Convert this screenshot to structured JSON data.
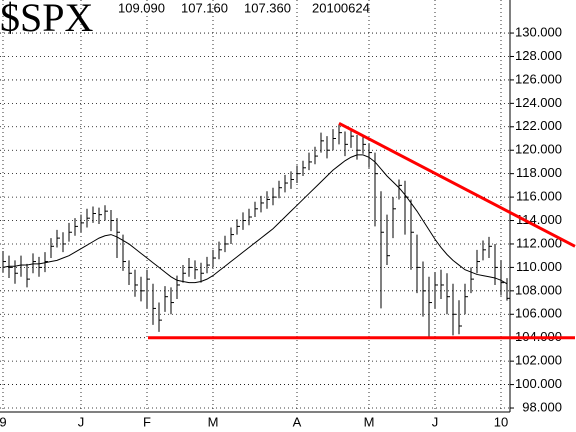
{
  "chart_data": {
    "type": "ohlc",
    "title": "$SPX",
    "header_values": [
      {
        "value": 109.09,
        "label": "109.090"
      },
      {
        "value": 107.16,
        "label": "107.160"
      },
      {
        "value": 107.36,
        "label": "107.360"
      }
    ],
    "date": "20100624",
    "categories": [
      "9",
      null,
      null,
      null,
      null,
      null,
      null,
      null,
      null,
      null,
      null,
      null,
      null,
      "J",
      null,
      null,
      null,
      null,
      null,
      null,
      null,
      null,
      null,
      null,
      "F",
      null,
      null,
      null,
      null,
      null,
      null,
      null,
      null,
      null,
      null,
      "M",
      null,
      null,
      null,
      null,
      null,
      null,
      null,
      null,
      null,
      null,
      null,
      null,
      null,
      "A",
      null,
      null,
      null,
      null,
      null,
      null,
      null,
      null,
      null,
      null,
      null,
      "M",
      null,
      null,
      null,
      null,
      null,
      null,
      null,
      null,
      null,
      null,
      "J",
      null,
      null,
      null,
      null,
      null,
      null,
      null,
      null,
      null,
      null,
      "10",
      null
    ],
    "high": [
      111.4,
      111,
      110.6,
      111,
      110.3,
      111.2,
      110.9,
      111.3,
      112.5,
      113.2,
      113,
      113.8,
      114.2,
      114.5,
      115,
      115.2,
      115.1,
      115.3,
      114.9,
      114.2,
      112.8,
      110.6,
      109.8,
      109.2,
      109.8,
      108.6,
      107,
      108.4,
      108.3,
      109.3,
      110.2,
      110.8,
      110.6,
      110.4,
      110.9,
      111.5,
      112.2,
      112.7,
      113.4,
      114.1,
      114.7,
      115,
      115.6,
      116.1,
      116.5,
      116.8,
      117.4,
      117.9,
      118.2,
      118.7,
      119.1,
      119.8,
      120.3,
      121.5,
      121.2,
      121.8,
      122.2,
      121.6,
      121.9,
      121.3,
      121.3,
      120.6,
      119.8,
      116.5,
      114.5,
      116,
      117.5,
      117.4,
      115.8,
      112.8,
      110.5,
      109.2,
      109.6,
      109.8,
      109.5,
      108.6,
      107.2,
      108.6,
      110,
      111.5,
      112.3,
      112.6,
      112,
      110.6,
      109.09
    ],
    "low": [
      109.6,
      109.1,
      108.6,
      109.2,
      108.3,
      109.5,
      109.2,
      109.6,
      110.8,
      111.7,
      111.3,
      112.2,
      112.7,
      113,
      113.4,
      113.8,
      113.7,
      114,
      113.1,
      110.8,
      109.7,
      108.5,
      107.5,
      107.1,
      106.5,
      105.1,
      104.5,
      106.2,
      106,
      107.3,
      108.7,
      109.2,
      109,
      108.7,
      109.5,
      110,
      110.7,
      111.3,
      112,
      112.8,
      113.2,
      113.6,
      114.3,
      114.7,
      115,
      115.3,
      115.9,
      116.4,
      116.7,
      117.2,
      117.8,
      118.3,
      118.8,
      119.8,
      119.3,
      120,
      120.5,
      119.5,
      120.2,
      119.2,
      119.7,
      118.5,
      113.5,
      106.5,
      110.2,
      112.5,
      115.8,
      112.8,
      109.8,
      107.8,
      105.8,
      104,
      106.5,
      107.3,
      106,
      104.2,
      104.3,
      106,
      107.8,
      109.5,
      110.6,
      110.8,
      108.5,
      107.6,
      107.16
    ],
    "close": [
      110.5,
      110,
      109.5,
      110.2,
      109,
      110.5,
      110,
      110.5,
      111.8,
      112.5,
      112,
      113,
      113.5,
      113.8,
      114.2,
      114.6,
      114.5,
      114.8,
      114,
      113,
      110.5,
      109.5,
      108.5,
      108,
      109,
      106.5,
      105.5,
      107.5,
      107,
      108.5,
      109.5,
      110,
      109.8,
      109.5,
      110.2,
      110.8,
      111.5,
      112,
      112.8,
      113.5,
      114,
      114.3,
      115,
      115.5,
      115.8,
      116,
      116.8,
      117.2,
      117.5,
      118,
      118.5,
      119,
      119.5,
      120.8,
      120,
      121,
      121.5,
      120.5,
      121.2,
      120,
      120.5,
      119.8,
      118,
      113,
      111,
      115,
      117,
      116,
      113,
      110,
      108,
      107,
      108.5,
      108.5,
      107.5,
      106,
      105,
      107.5,
      109,
      110.5,
      111.5,
      111.8,
      110,
      108.7,
      107.36
    ],
    "moving_average": [
      110,
      110.1,
      110.1,
      110.2,
      110.2,
      110.3,
      110.3,
      110.4,
      110.5,
      110.6,
      110.8,
      111,
      111.3,
      111.6,
      111.9,
      112.2,
      112.5,
      112.7,
      112.8,
      112.6,
      112.3,
      112,
      111.6,
      111.2,
      110.8,
      110.4,
      110,
      109.6,
      109.2,
      108.9,
      108.8,
      108.7,
      108.7,
      108.8,
      109,
      109.3,
      109.7,
      110.1,
      110.5,
      110.9,
      111.3,
      111.7,
      112.1,
      112.5,
      112.9,
      113.3,
      113.8,
      114.3,
      114.8,
      115.3,
      115.8,
      116.3,
      116.8,
      117.3,
      117.8,
      118.3,
      118.7,
      119.1,
      119.4,
      119.6,
      119.6,
      119.4,
      119,
      118.4,
      117.8,
      117.3,
      116.8,
      116.2,
      115.5,
      114.8,
      114,
      113.2,
      112.4,
      111.7,
      111.1,
      110.6,
      110.2,
      109.8,
      109.6,
      109.4,
      109.3,
      109.2,
      109.1,
      108.9,
      108.6
    ],
    "color": "#000000",
    "trendline_color": "#ff0000",
    "trendlines": {
      "resistance": [
        122.3,
        111.8
      ],
      "support": 104
    },
    "ylim": [
      97.66,
      132.82
    ],
    "yticks": [
      {
        "value": 98,
        "label": "98.000"
      },
      {
        "value": 100,
        "label": "100.000"
      },
      {
        "value": 102,
        "label": "102.000"
      },
      {
        "value": 104,
        "label": "104.000"
      },
      {
        "value": 106,
        "label": "106.000"
      },
      {
        "value": 108,
        "label": "108.000"
      },
      {
        "value": 110,
        "label": "110.000"
      },
      {
        "value": 112,
        "label": "112.000"
      },
      {
        "value": 114,
        "label": "114.000"
      },
      {
        "value": 116,
        "label": "116.000"
      },
      {
        "value": 118,
        "label": "118.000"
      },
      {
        "value": 120,
        "label": "120.000"
      },
      {
        "value": 122,
        "label": "122.000"
      },
      {
        "value": 124,
        "label": "124.000"
      },
      {
        "value": 126,
        "label": "126.000"
      },
      {
        "value": 128,
        "label": "128.000"
      },
      {
        "value": 130,
        "label": "130.000"
      }
    ],
    "grid": true
  }
}
